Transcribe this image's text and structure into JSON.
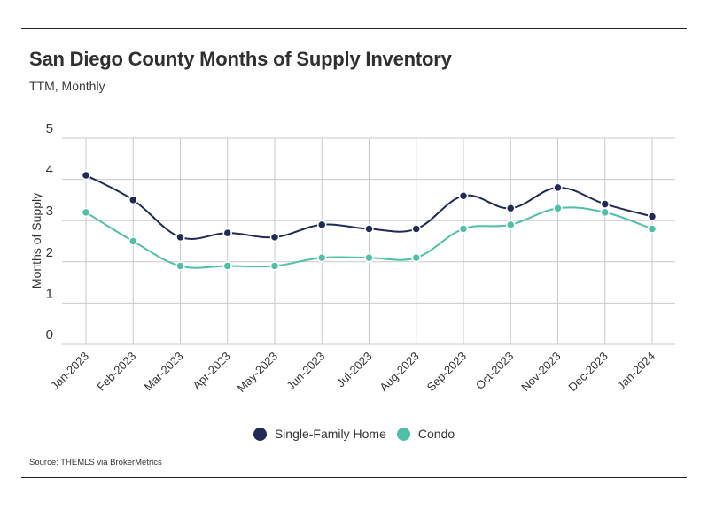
{
  "title": "San Diego County Months of Supply Inventory",
  "subtitle": "TTM, Monthly",
  "source": "Source:  THEMLS via BrokerMetrics",
  "chart_data": {
    "type": "line",
    "title": "San Diego County Months of Supply Inventory",
    "subtitle": "TTM, Monthly",
    "xlabel": "",
    "ylabel": "Months of Supply",
    "ylim": [
      0,
      5
    ],
    "yticks": [
      0,
      1,
      2,
      3,
      4,
      5
    ],
    "grid": true,
    "legend": "bottom-center",
    "categories": [
      "Jan-2023",
      "Feb-2023",
      "Mar-2023",
      "Apr-2023",
      "May-2023",
      "Jun-2023",
      "Jul-2023",
      "Aug-2023",
      "Sep-2023",
      "Oct-2023",
      "Nov-2023",
      "Dec-2023",
      "Jan-2024"
    ],
    "series": [
      {
        "name": "Single-Family Home",
        "color": "#1f2a55",
        "values": [
          4.1,
          3.5,
          2.6,
          2.7,
          2.6,
          2.9,
          2.8,
          2.8,
          3.6,
          3.3,
          3.8,
          3.4,
          3.1
        ]
      },
      {
        "name": "Condo",
        "color": "#4fbfa8",
        "values": [
          3.2,
          2.5,
          1.9,
          1.9,
          1.9,
          2.1,
          2.1,
          2.1,
          2.8,
          2.9,
          3.3,
          3.2,
          2.8
        ]
      }
    ]
  }
}
